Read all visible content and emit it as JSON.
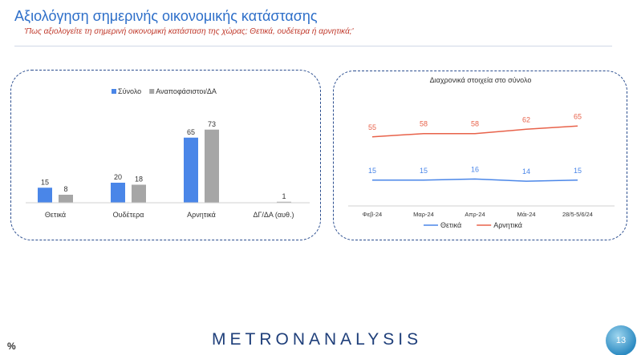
{
  "header": {
    "title": "Αξιολόγηση σημερινής οικονομικής κατάστασης",
    "subtitle": "'Πως αξιολογείτε τη σημερινή οικονομική κατάσταση της χώρας; Θετικά, ουδέτερα ή αρνητικά;'"
  },
  "footer": {
    "unit": "%",
    "logo_text": "METRONANALYSIS",
    "page_number": "13"
  },
  "colors": {
    "title": "#2e6fc9",
    "subtitle": "#c0392b",
    "series_total": "#4a86e8",
    "series_undecided": "#a6a6a6",
    "series_positive": "#4a86e8",
    "series_negative": "#e8624a"
  },
  "chart_data": [
    {
      "type": "bar",
      "title": "",
      "categories": [
        "Θετικά",
        "Ουδέτερα",
        "Αρνητικά",
        "ΔΓ/ΔΑ (αυθ.)"
      ],
      "series": [
        {
          "name": "Σύνολο",
          "values": [
            15,
            20,
            65,
            null
          ]
        },
        {
          "name": "Αναποφάσιστοι/ΔΑ",
          "values": [
            8,
            18,
            73,
            1
          ]
        }
      ],
      "ylim": [
        0,
        80
      ],
      "legend": "top",
      "grid": false
    },
    {
      "type": "line",
      "title": "Διαχρονικά στοιχεία στο σύνολο",
      "categories": [
        "Φεβ-24",
        "Μαρ-24",
        "Απρ-24",
        "Μάι-24",
        "28/5-5/6/24"
      ],
      "series": [
        {
          "name": "Θετικά",
          "values": [
            15,
            15,
            16,
            14,
            15
          ]
        },
        {
          "name": "Αρνητικά",
          "values": [
            55,
            58,
            58,
            62,
            65
          ]
        }
      ],
      "legend": "bottom",
      "grid": false
    }
  ]
}
